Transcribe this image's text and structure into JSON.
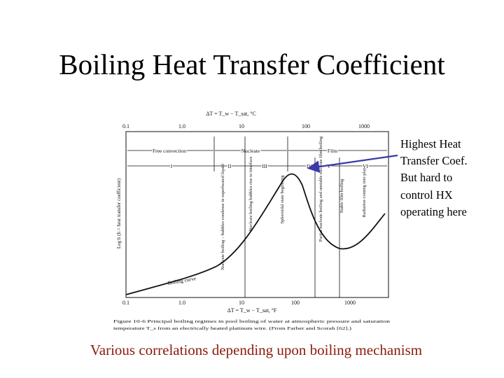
{
  "slide": {
    "title": "Boiling Heat Transfer Coefficient",
    "callout": [
      "Highest Heat",
      "Transfer Coef.",
      "But hard to",
      "control HX",
      "operating here"
    ],
    "caption": "Various correlations depending upon boiling mechanism"
  },
  "figure": {
    "top_axis_label": "ΔT = T_w − T_sat, °C",
    "top_ticks": [
      "0.1",
      "1.0",
      "10",
      "100",
      "1000"
    ],
    "bottom_ticks": [
      "0.1",
      "1.0",
      "10",
      "100",
      "1000"
    ],
    "bottom_axis_label": "ΔT = T_w − T_sat, °F",
    "y_axis_label": "Log h (h = heat transfer coefficient)",
    "regimes_row1": [
      "Free convection",
      "Nucleate",
      "Film"
    ],
    "regimes_row2": [
      "I",
      "II",
      "III",
      "IV",
      "V",
      "VI"
    ],
    "curve_label": "Boiling curve",
    "annotations": [
      "Nucleate boiling – bubbles condense in superheated liquid",
      "Nucleate boiling bubbles rise to interface",
      "Spheroidal state beginning",
      "Partial nucleate boiling and unstable nucleate film boiling",
      "Stable film boiling",
      "Radiation coming into play"
    ],
    "caption_line1": "Figure 10-6  Principal boiling regimes in pool boiling of water at atmospheric pressure and saturation",
    "caption_line2": "temperature T_s from an electrically heated platinum wire. (From Farber and Scorah [62].)"
  },
  "colors": {
    "caption": "#8b1a0a",
    "arrow": "#3a3aa8"
  }
}
